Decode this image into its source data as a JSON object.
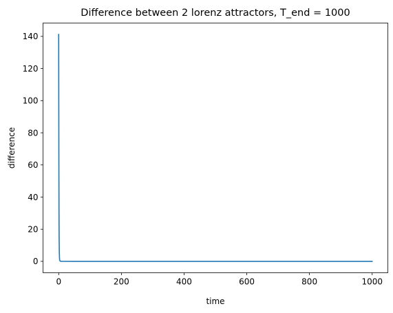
{
  "chart_data": {
    "type": "line",
    "title": "Difference between 2 lorenz attractors, T_end = 1000",
    "xlabel": "time",
    "ylabel": "difference",
    "xlim": [
      -50,
      1050
    ],
    "ylim": [
      -7.1,
      148.3
    ],
    "xticks": [
      "0",
      "200",
      "400",
      "600",
      "800",
      "1000"
    ],
    "xtick_values": [
      0,
      200,
      400,
      600,
      800,
      1000
    ],
    "yticks": [
      "0",
      "20",
      "40",
      "60",
      "80",
      "100",
      "120",
      "140"
    ],
    "ytick_values": [
      0,
      20,
      40,
      60,
      80,
      100,
      120,
      140
    ],
    "grid": false,
    "series": [
      {
        "color": "#1f77b4",
        "x": [
          0,
          0.3,
          0.6,
          1,
          1.5,
          2,
          2.5,
          3,
          4,
          5,
          10,
          50,
          100,
          200,
          400,
          600,
          800,
          1000
        ],
        "y": [
          141.2,
          100,
          60,
          30,
          14,
          6,
          2.5,
          1,
          0.3,
          0.1,
          0.05,
          0,
          0,
          0,
          0,
          0,
          0,
          0
        ]
      }
    ]
  }
}
